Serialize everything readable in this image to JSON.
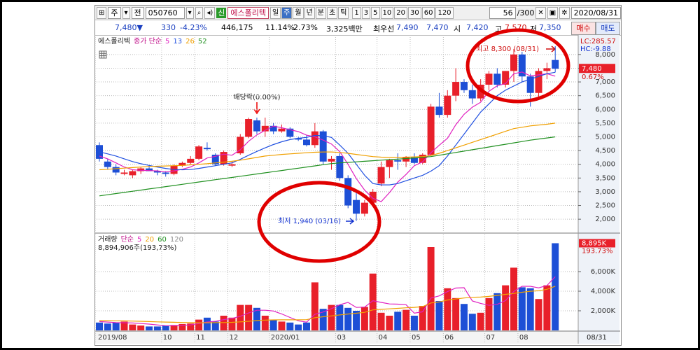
{
  "toolbar": {
    "menu": "주",
    "prev": "전",
    "code": "050760",
    "badge": "신",
    "name": "에스폴리텍",
    "periods": [
      "일",
      "주",
      "월",
      "년",
      "분",
      "초",
      "틱"
    ],
    "selected_period": 1,
    "intervals": [
      "1",
      "3",
      "5",
      "10",
      "20",
      "30",
      "60",
      "120"
    ],
    "count": "56",
    "total": "/300",
    "date": "2020/08/31"
  },
  "quote": [
    {
      "text": "7,480▼",
      "color": "#1a3fc0"
    },
    {
      "text": "330",
      "color": "#1a3fc0"
    },
    {
      "text": "-4.23%",
      "color": "#1a3fc0"
    },
    {
      "text": "446,175",
      "color": "#000000"
    },
    {
      "text": "11.14%",
      "color": "#000000"
    },
    {
      "text": "2.73%",
      "color": "#000000"
    },
    {
      "text": "3,325백만",
      "color": "#000000"
    },
    {
      "text": "최우선",
      "color": "#000000"
    },
    {
      "text": "7,490",
      "color": "#1a3fc0"
    },
    {
      "text": "7,470",
      "color": "#1a3fc0"
    },
    {
      "text": "시",
      "color": "#000000"
    },
    {
      "text": "7,420",
      "color": "#1a3fc0"
    },
    {
      "text": "고",
      "color": "#000000"
    },
    {
      "text": "7,570",
      "color": "#d01010"
    },
    {
      "text": "저",
      "color": "#000000"
    },
    {
      "text": "7,350",
      "color": "#1a3fc0"
    }
  ],
  "buttons": {
    "buy": "매수",
    "sell": "매도"
  },
  "chart_data": [
    {
      "type": "candlestick",
      "title": "에스폴리텍",
      "ma_label": "종가 단순",
      "up_color": "#e8202a",
      "down_color": "#1d4fd6",
      "open": [
        4700,
        4100,
        3900,
        3650,
        3600,
        3750,
        3850,
        3750,
        3700,
        3650,
        3950,
        4050,
        4200,
        4600,
        4350,
        4000,
        3950,
        4400,
        5000,
        5600,
        5200,
        5400,
        5200,
        5300,
        4950,
        4900,
        4700,
        5200,
        4100,
        4300,
        3500,
        2700,
        2200,
        2600,
        3300,
        3900,
        4150,
        4100,
        4250,
        4050,
        4350,
        6100,
        5800,
        6500,
        7000,
        6700,
        6400,
        6900,
        7300,
        6900,
        7400,
        8000,
        7200,
        6600,
        7400,
        7800
      ],
      "high": [
        4800,
        4200,
        4000,
        3800,
        3800,
        3900,
        3950,
        3800,
        3750,
        4000,
        4100,
        4300,
        4700,
        4800,
        4400,
        4500,
        4100,
        5100,
        5700,
        5700,
        5700,
        5500,
        5450,
        5350,
        5000,
        5050,
        5500,
        5250,
        4300,
        4400,
        3600,
        3000,
        2700,
        3100,
        4100,
        4200,
        4400,
        4300,
        4400,
        4400,
        6200,
        6600,
        6700,
        7500,
        7100,
        6900,
        7100,
        7400,
        7500,
        7400,
        8200,
        8100,
        7300,
        7500,
        7700,
        8300
      ],
      "low": [
        4100,
        3800,
        3600,
        3600,
        3500,
        3650,
        3750,
        3600,
        3550,
        3600,
        3900,
        4000,
        4150,
        4500,
        3950,
        3950,
        3900,
        4350,
        4950,
        5100,
        5000,
        5100,
        5150,
        4950,
        4850,
        4650,
        4600,
        4000,
        3800,
        3400,
        2400,
        1940,
        2100,
        2500,
        3200,
        3500,
        3800,
        3900,
        4000,
        4000,
        4300,
        5700,
        5700,
        6300,
        6600,
        6200,
        6300,
        6700,
        6800,
        6800,
        7000,
        7000,
        6100,
        6400,
        7100,
        7350
      ],
      "close": [
        4200,
        3900,
        3700,
        3700,
        3750,
        3850,
        3750,
        3700,
        3650,
        3950,
        4050,
        4200,
        4650,
        4550,
        4000,
        4450,
        4000,
        5000,
        5650,
        5200,
        5400,
        5200,
        5300,
        5000,
        4900,
        4700,
        5200,
        4100,
        4200,
        3500,
        2500,
        2200,
        2600,
        3000,
        3900,
        4150,
        4100,
        4250,
        4050,
        4350,
        6100,
        5800,
        6500,
        7000,
        6700,
        6400,
        6900,
        7300,
        6900,
        7400,
        8000,
        7200,
        6600,
        7400,
        7500,
        7480
      ],
      "series": [
        {
          "name": "5",
          "color": "#e020c0",
          "values": [
            4300,
            4200,
            4050,
            3900,
            3800,
            3780,
            3770,
            3760,
            3720,
            3760,
            3820,
            3900,
            4050,
            4230,
            4290,
            4370,
            4330,
            4530,
            4840,
            5070,
            5240,
            5390,
            5330,
            5260,
            5190,
            5060,
            5000,
            4880,
            4740,
            4460,
            4000,
            3480,
            3060,
            2760,
            2640,
            2970,
            3350,
            3630,
            3950,
            4090,
            4420,
            4690,
            4950,
            5440,
            5820,
            6080,
            6260,
            6660,
            6860,
            6940,
            7300,
            7360,
            7220,
            7260,
            7300,
            7210
          ]
        },
        {
          "name": "13",
          "color": "#2050e0",
          "values": [
            4450,
            4380,
            4300,
            4200,
            4100,
            4020,
            3960,
            3900,
            3850,
            3810,
            3800,
            3810,
            3850,
            3900,
            3950,
            4000,
            4050,
            4180,
            4330,
            4470,
            4600,
            4720,
            4820,
            4900,
            4950,
            4980,
            5050,
            5040,
            4980,
            4700,
            4400,
            4000,
            3600,
            3300,
            3250,
            3250,
            3300,
            3400,
            3500,
            3600,
            3750,
            3950,
            4300,
            4700,
            5100,
            5500,
            5900,
            6200,
            6500,
            6700,
            6850,
            7000,
            7100,
            7200,
            7300,
            7350
          ]
        },
        {
          "name": "26",
          "color": "#f0a000",
          "values": [
            3800,
            3820,
            3840,
            3860,
            3880,
            3900,
            3920,
            3930,
            3940,
            3950,
            3960,
            3980,
            4000,
            4020,
            4050,
            4080,
            4110,
            4150,
            4200,
            4250,
            4300,
            4330,
            4360,
            4380,
            4400,
            4420,
            4440,
            4450,
            4450,
            4430,
            4400,
            4360,
            4320,
            4280,
            4260,
            4250,
            4250,
            4260,
            4270,
            4280,
            4320,
            4400,
            4500,
            4600,
            4700,
            4800,
            4900,
            5000,
            5100,
            5200,
            5300,
            5350,
            5400,
            5430,
            5460,
            5500
          ]
        },
        {
          "name": "52",
          "color": "#209020",
          "values": [
            2850,
            2892,
            2934,
            2976,
            3018,
            3060,
            3102,
            3144,
            3186,
            3228,
            3270,
            3312,
            3354,
            3396,
            3438,
            3480,
            3522,
            3564,
            3606,
            3648,
            3690,
            3732,
            3774,
            3816,
            3858,
            3900,
            3942,
            3984,
            4026,
            4050,
            4070,
            4090,
            4110,
            4130,
            4150,
            4170,
            4190,
            4210,
            4230,
            4250,
            4280,
            4330,
            4380,
            4430,
            4480,
            4530,
            4580,
            4630,
            4680,
            4730,
            4780,
            4830,
            4880,
            4920,
            4960,
            5000
          ]
        }
      ],
      "ylim": [
        1570,
        8710
      ],
      "yticks": [
        {
          "value": 2000,
          "label": "2,000"
        },
        {
          "value": 2500,
          "label": "2,500"
        },
        {
          "value": 3000,
          "label": "3,000"
        },
        {
          "value": 3500,
          "label": "3,500"
        },
        {
          "value": 4000,
          "label": "4,000"
        },
        {
          "value": 4500,
          "label": "4,500"
        },
        {
          "value": 5000,
          "label": "5,000"
        },
        {
          "value": 5500,
          "label": "5,500"
        },
        {
          "value": 6000,
          "label": "6,000"
        },
        {
          "value": 6500,
          "label": "6,500"
        },
        {
          "value": 7000,
          "label": "7,000"
        },
        {
          "value": 7500,
          "label": "7,500"
        },
        {
          "value": 8000,
          "label": "8,000"
        }
      ],
      "grid": true,
      "annotations": [
        "배당락(0.00%)",
        "최저 1,940 (03/16)",
        "최고 8,300 (08/31)"
      ],
      "right_labels": {
        "lc": "LC:285.57",
        "hc": "HC:-9.88",
        "last": "7,480",
        "change": "0.67%"
      }
    },
    {
      "type": "bar",
      "title": "거래량",
      "ma_label": "단순",
      "info": "8,894,906주(193,73%)",
      "categories": [
        "2019/08",
        null,
        null,
        null,
        null,
        null,
        null,
        null,
        "10",
        null,
        null,
        null,
        "11",
        null,
        null,
        null,
        "12",
        null,
        null,
        null,
        null,
        "2020/01",
        null,
        null,
        null,
        null,
        null,
        null,
        null,
        "03",
        null,
        null,
        null,
        null,
        "04",
        null,
        null,
        null,
        "05",
        null,
        null,
        null,
        "06",
        null,
        null,
        null,
        null,
        "07",
        null,
        null,
        null,
        "08",
        null,
        null,
        null,
        null
      ],
      "values": [
        800,
        700,
        800,
        900,
        600,
        500,
        400,
        400,
        500,
        550,
        650,
        700,
        1100,
        1300,
        900,
        1500,
        1300,
        2600,
        2600,
        2300,
        1500,
        1100,
        900,
        800,
        600,
        800,
        4900,
        2200,
        2600,
        2600,
        2300,
        2000,
        2400,
        5800,
        1800,
        1500,
        1900,
        2100,
        1500,
        2500,
        8500,
        3000,
        4300,
        3300,
        2700,
        1700,
        1800,
        3300,
        3800,
        4600,
        6400,
        4400,
        4300,
        3200,
        4600,
        8895
      ],
      "series": [
        {
          "name": "5",
          "color": "#e020c0",
          "values": [
            900,
            850,
            800,
            780,
            760,
            700,
            640,
            560,
            480,
            470,
            520,
            560,
            700,
            860,
            930,
            1100,
            1220,
            1440,
            1780,
            2060,
            2060,
            1980,
            1680,
            1320,
            980,
            840,
            1640,
            1880,
            2220,
            2620,
            2860,
            2340,
            2380,
            3020,
            2860,
            2700,
            2680,
            2620,
            1760,
            1900,
            3300,
            3520,
            3960,
            4320,
            4360,
            3000,
            2760,
            2560,
            2660,
            3040,
            3980,
            4500,
            4500,
            4340,
            4580,
            5479
          ]
        },
        {
          "name": "20",
          "color": "#f0a000",
          "values": [
            1000,
            990,
            980,
            970,
            950,
            930,
            900,
            870,
            850,
            830,
            810,
            790,
            780,
            780,
            790,
            800,
            820,
            870,
            930,
            1010,
            1050,
            1070,
            1080,
            1080,
            1080,
            1090,
            1300,
            1390,
            1480,
            1580,
            1670,
            1750,
            1840,
            2090,
            2150,
            2200,
            2250,
            2310,
            2350,
            2430,
            2800,
            2900,
            3100,
            3210,
            3310,
            3380,
            3400,
            3470,
            3570,
            3680,
            3770,
            3890,
            3990,
            4050,
            4190,
            4510
          ]
        }
      ],
      "extra_legend": [
        {
          "name": "60",
          "color": "#209020"
        },
        {
          "name": "120",
          "color": "#888888"
        }
      ],
      "ylim": [
        0,
        9714
      ],
      "yticks": [
        {
          "value": 2000,
          "label": "2,000K"
        },
        {
          "value": 4000,
          "label": "4,000K"
        },
        {
          "value": 6000,
          "label": "6,000K"
        }
      ],
      "grid": true,
      "last_date": "08/31",
      "right_labels": {
        "last": "8,895K",
        "change": "193.73%"
      }
    }
  ]
}
